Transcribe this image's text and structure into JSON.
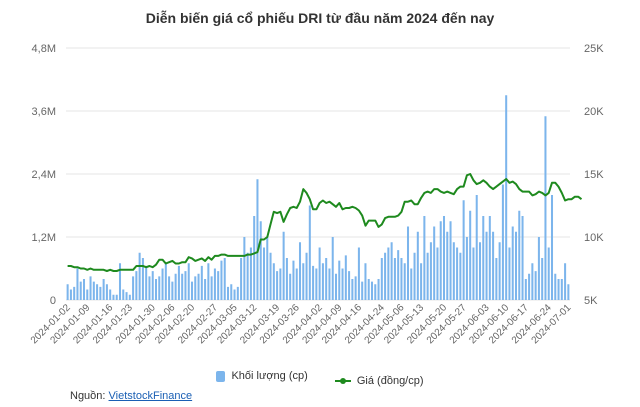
{
  "colors": {
    "volume": "#7cb5ec",
    "price": "#1e8a1e",
    "grid": "#e6e6e6"
  },
  "legend": {
    "volume_label": "Khối lượng (cp)",
    "price_label": "Giá (đồng/cp)",
    "placement": "bottom-center"
  },
  "source": {
    "prefix": "Nguồn:",
    "link_text": "VietstockFinance"
  },
  "chart_data": {
    "type": "bar+line",
    "title": "Diễn biến giá cổ phiếu DRI từ đầu năm 2024 đến nay",
    "grid": true,
    "y_left": {
      "ticks": [
        "0",
        "1,2M",
        "2,4M",
        "3,6M",
        "4,8M"
      ],
      "range": [
        0,
        4800000
      ]
    },
    "y_right": {
      "ticks": [
        "5K",
        "10K",
        "15K",
        "20K",
        "25K"
      ],
      "range": [
        5000,
        25000
      ]
    },
    "x_tick_labels": [
      "2024-01-02",
      "2024-01-09",
      "2024-01-16",
      "2024-01-23",
      "2024-01-30",
      "2024-02-06",
      "2024-02-20",
      "2024-02-27",
      "2024-03-05",
      "2024-03-12",
      "2024-03-19",
      "2024-03-26",
      "2024-04-02",
      "2024-04-09",
      "2024-04-16",
      "2024-04-24",
      "2024-05-06",
      "2024-05-13",
      "2024-05-20",
      "2024-05-27",
      "2024-06-03",
      "2024-06-10",
      "2024-06-17",
      "2024-06-24",
      "2024-07-01"
    ],
    "series": [
      {
        "name": "Khối lượng (cp)",
        "type": "bar",
        "axis": "left",
        "values": [
          300000,
          200000,
          250000,
          600000,
          350000,
          400000,
          200000,
          450000,
          350000,
          300000,
          250000,
          400000,
          300000,
          200000,
          100000,
          100000,
          700000,
          200000,
          150000,
          100000,
          450000,
          550000,
          900000,
          800000,
          650000,
          450000,
          550000,
          400000,
          450000,
          600000,
          700000,
          450000,
          350000,
          500000,
          650000,
          500000,
          550000,
          700000,
          350000,
          450000,
          500000,
          650000,
          400000,
          700000,
          450000,
          600000,
          550000,
          750000,
          800000,
          250000,
          300000,
          200000,
          250000,
          800000,
          1200000,
          900000,
          1000000,
          1600000,
          2300000,
          1500000,
          1000000,
          1200000,
          900000,
          700000,
          550000,
          600000,
          1300000,
          800000,
          500000,
          750000,
          600000,
          1100000,
          700000,
          900000,
          1800000,
          650000,
          600000,
          1000000,
          700000,
          800000,
          600000,
          1200000,
          500000,
          750000,
          600000,
          850000,
          550000,
          400000,
          450000,
          1000000,
          350000,
          700000,
          400000,
          350000,
          300000,
          400000,
          800000,
          900000,
          1000000,
          1100000,
          800000,
          950000,
          800000,
          700000,
          1400000,
          600000,
          900000,
          1300000,
          700000,
          1600000,
          900000,
          1100000,
          1400000,
          1000000,
          1500000,
          1600000,
          1300000,
          1500000,
          1100000,
          1000000,
          900000,
          1900000,
          1200000,
          1700000,
          1000000,
          2000000,
          1100000,
          1600000,
          1300000,
          1600000,
          1300000,
          800000,
          1100000,
          2200000,
          3900000,
          1000000,
          1400000,
          1300000,
          1700000,
          1600000,
          400000,
          500000,
          700000,
          550000,
          1200000,
          800000,
          3500000,
          1000000,
          2000000,
          500000,
          400000,
          400000,
          700000,
          300000
        ],
        "unit": "cp"
      },
      {
        "name": "Giá (đồng/cp)",
        "type": "line",
        "axis": "right",
        "values": [
          7700,
          7700,
          7600,
          7600,
          7500,
          7500,
          7400,
          7500,
          7400,
          7400,
          7400,
          7400,
          7300,
          7400,
          7300,
          7300,
          7400,
          7400,
          7400,
          7400,
          7400,
          7700,
          7700,
          7700,
          7600,
          7700,
          7600,
          7800,
          8200,
          8200,
          7900,
          8000,
          8100,
          7900,
          7900,
          8000,
          8000,
          8400,
          8300,
          8100,
          8200,
          8300,
          8100,
          8400,
          8200,
          8500,
          8500,
          8600,
          8600,
          8500,
          8500,
          8500,
          8500,
          8500,
          8500,
          8600,
          8600,
          8700,
          8800,
          9800,
          9800,
          10000,
          11000,
          12000,
          11900,
          12000,
          11200,
          11800,
          12300,
          12400,
          12300,
          12800,
          13800,
          13500,
          13000,
          12200,
          12200,
          12700,
          12900,
          12700,
          12800,
          12600,
          12400,
          12700,
          12200,
          12300,
          12300,
          12400,
          12300,
          12100,
          11700,
          10900,
          11300,
          11300,
          11300,
          10800,
          11000,
          11500,
          11600,
          11600,
          11600,
          11700,
          12000,
          12800,
          12800,
          12900,
          12600,
          12600,
          13100,
          13500,
          13600,
          13500,
          13800,
          13800,
          13600,
          13500,
          13600,
          13500,
          13400,
          13800,
          14000,
          14000,
          14900,
          15000,
          14500,
          14200,
          14300,
          14500,
          14300,
          14000,
          13800,
          14000,
          14200,
          14400,
          14600,
          14300,
          14400,
          14200,
          13800,
          13600,
          13600,
          13600,
          13300,
          13400,
          13600,
          13500,
          13300,
          13500,
          14300,
          14300,
          14000,
          13500,
          12900,
          13000,
          13000,
          13200,
          13200,
          13000
        ]
      }
    ]
  }
}
